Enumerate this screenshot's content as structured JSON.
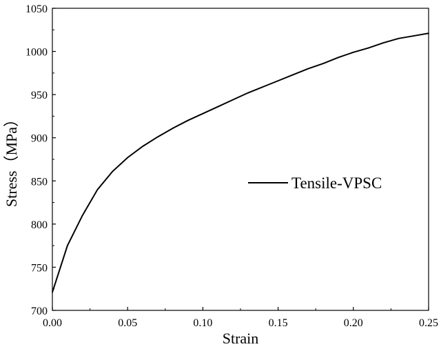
{
  "chart_data": {
    "type": "line",
    "xlabel": "Strain",
    "ylabel": "Stress（MPa）",
    "xlim": [
      0.0,
      0.25
    ],
    "ylim": [
      700,
      1050
    ],
    "x_ticks": [
      0.0,
      0.05,
      0.1,
      0.15,
      0.2,
      0.25
    ],
    "x_tick_labels": [
      "0.00",
      "0.05",
      "0.10",
      "0.15",
      "0.20",
      "0.25"
    ],
    "y_ticks": [
      700,
      750,
      800,
      850,
      900,
      950,
      1000,
      1050
    ],
    "y_tick_labels": [
      "700",
      "750",
      "800",
      "850",
      "900",
      "950",
      "1000",
      "1050"
    ],
    "grid": false,
    "legend_position": "right",
    "series": [
      {
        "name": "Tensile-VPSC",
        "color": "#000000",
        "x": [
          0.0,
          0.01,
          0.02,
          0.03,
          0.04,
          0.05,
          0.06,
          0.07,
          0.08,
          0.09,
          0.1,
          0.11,
          0.12,
          0.13,
          0.14,
          0.15,
          0.16,
          0.17,
          0.18,
          0.19,
          0.2,
          0.21,
          0.22,
          0.23,
          0.24,
          0.25
        ],
        "y": [
          721,
          775,
          810,
          840,
          861,
          877,
          890,
          901,
          911,
          920,
          928,
          936,
          944,
          952,
          959,
          966,
          973,
          980,
          986,
          993,
          999,
          1004,
          1010,
          1015,
          1018,
          1021
        ]
      }
    ]
  }
}
